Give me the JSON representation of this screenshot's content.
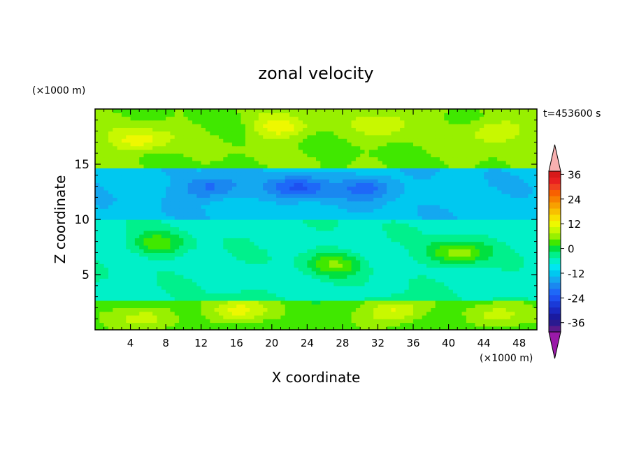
{
  "chart_data": {
    "type": "heatmap",
    "title": "zonal velocity",
    "xlabel": "X coordinate",
    "ylabel": "Z coordinate",
    "x_unit": "(×1000 m)",
    "y_unit": "(×1000 m)",
    "time_label": "t=453600 s",
    "xlim": [
      0,
      50
    ],
    "ylim": [
      0,
      20
    ],
    "x_ticks": [
      4,
      8,
      12,
      16,
      20,
      24,
      28,
      32,
      36,
      40,
      44,
      48
    ],
    "y_ticks": [
      5,
      10,
      15
    ],
    "colorbar": {
      "levels": [
        -39,
        -36,
        -33,
        -30,
        -27,
        -24,
        -21,
        -18,
        -15,
        -12,
        -9,
        -6,
        -3,
        0,
        3,
        6,
        9,
        12,
        15,
        18,
        21,
        24,
        27,
        30,
        33,
        36,
        39
      ],
      "colors": [
        "#5a1a8c",
        "#2a1a90",
        "#1a1aa0",
        "#1a28c0",
        "#1a3ad8",
        "#1e50f0",
        "#1e68f8",
        "#1a88f0",
        "#14a8f0",
        "#00c8f0",
        "#00e6f0",
        "#00f0c8",
        "#00f08c",
        "#00e040",
        "#40e800",
        "#98f000",
        "#c8f800",
        "#eef800",
        "#f8e000",
        "#f8c000",
        "#f8a000",
        "#f88000",
        "#f86000",
        "#f04020",
        "#e82020",
        "#d81a1a"
      ],
      "tick_labels": [
        "36",
        "24",
        "12",
        "0",
        "-12",
        "-24",
        "-36"
      ],
      "under_color": "#9a1aa8",
      "over_color": "#f8b0b0"
    },
    "field": {
      "description_values_ms": "zonal wind field on x 0..50 km, z 0..20 km; levels every 3 m/s",
      "bands": [
        {
          "z_range": [
            0,
            2.5
          ],
          "base": 4
        },
        {
          "z_range": [
            2.5,
            10
          ],
          "base": -4
        },
        {
          "z_range": [
            10,
            14.6
          ],
          "base": -11
        },
        {
          "z_range": [
            14.6,
            20
          ],
          "base": 6
        }
      ],
      "features": [
        {
          "x": 16,
          "z": 1.7,
          "value": 14
        },
        {
          "x": 6,
          "z": 1.2,
          "value": 11
        },
        {
          "x": 34,
          "z": 1.8,
          "value": 14
        },
        {
          "x": 45,
          "z": 1.2,
          "value": 11
        },
        {
          "x": 41,
          "z": 7.0,
          "value": 8
        },
        {
          "x": 27,
          "z": 6.0,
          "value": 5
        },
        {
          "x": 7,
          "z": 7.8,
          "value": 4
        },
        {
          "x": 13,
          "z": 12.9,
          "value": -20
        },
        {
          "x": 23,
          "z": 12.9,
          "value": -22
        },
        {
          "x": 31,
          "z": 12.9,
          "value": -20
        },
        {
          "x": 5,
          "z": 17.2,
          "value": 14
        },
        {
          "x": 21,
          "z": 18.4,
          "value": 14
        },
        {
          "x": 45,
          "z": 17.9,
          "value": 13
        },
        {
          "x": 33,
          "z": 18.8,
          "value": 12
        }
      ]
    }
  }
}
